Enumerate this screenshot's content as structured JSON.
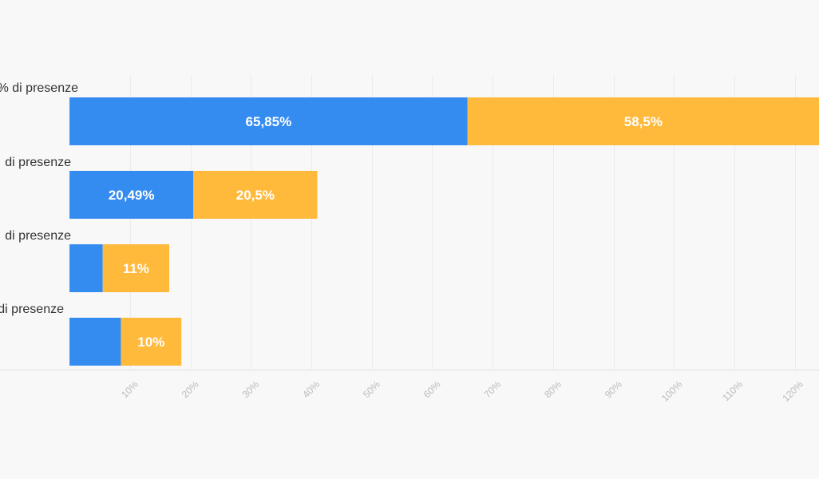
{
  "chart_data": {
    "type": "bar",
    "orientation": "horizontal",
    "stacked": true,
    "categories": [
      "% di presenze",
      "di presenze",
      "di presenze",
      "di presenze"
    ],
    "series": [
      {
        "values": [
          65.85,
          20.49,
          5.5,
          8.5
        ],
        "labels": [
          "65,85%",
          "20,49%",
          "",
          ""
        ]
      },
      {
        "values": [
          58.5,
          20.5,
          11,
          10
        ],
        "labels": [
          "58,5%",
          "20,5%",
          "11%",
          "10%"
        ]
      }
    ],
    "xlim": [
      -11.5,
      124
    ],
    "xticks": [
      10,
      20,
      30,
      40,
      50,
      60,
      70,
      80,
      90,
      100,
      110,
      120
    ],
    "xtick_labels": [
      "10%",
      "20%",
      "30%",
      "40%",
      "50%",
      "60%",
      "70%",
      "80%",
      "90%",
      "100%",
      "110%",
      "120%"
    ],
    "grid": true,
    "colors": [
      "#348cf0",
      "#ffb93b"
    ],
    "grid_color": "#ebebeb"
  }
}
